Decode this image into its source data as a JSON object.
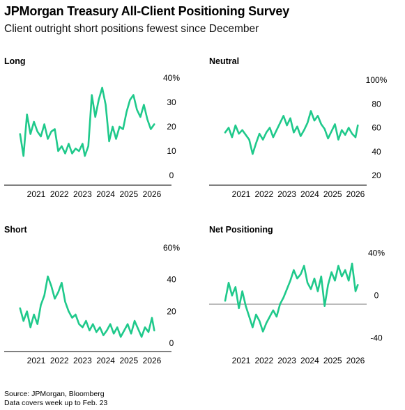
{
  "title": "JPMorgan Treasury All-Client Positioning Survey",
  "subtitle": "Client outright short positions fewest since December",
  "footer": {
    "source": "Source: JPMorgan, Bloomberg",
    "note": "Data covers week up to Feb. 23"
  },
  "colors": {
    "line": "#1fc98b",
    "axis": "#000000",
    "zero": "#777777"
  },
  "chart_data": [
    {
      "type": "line",
      "title": "Long",
      "x_ticks": [
        "2021",
        "2022",
        "2023",
        "2024",
        "2025",
        "2026"
      ],
      "y_ticks": [
        "40%",
        "30",
        "20",
        "10",
        "0"
      ],
      "y_tick_values": [
        40,
        30,
        20,
        10,
        0
      ],
      "ylim": [
        0,
        40
      ],
      "xlim": [
        2020.25,
        2026.15
      ],
      "x": [
        2020.3,
        2020.45,
        2020.6,
        2020.75,
        2020.9,
        2021.05,
        2021.2,
        2021.35,
        2021.5,
        2021.65,
        2021.8,
        2021.95,
        2022.1,
        2022.25,
        2022.4,
        2022.55,
        2022.7,
        2022.85,
        2023.0,
        2023.1,
        2023.25,
        2023.4,
        2023.55,
        2023.7,
        2023.85,
        2024.0,
        2024.15,
        2024.3,
        2024.45,
        2024.6,
        2024.75,
        2024.9,
        2025.05,
        2025.2,
        2025.35,
        2025.5,
        2025.65,
        2025.8,
        2025.95,
        2026.1
      ],
      "values": [
        17,
        8,
        25,
        17,
        22,
        18,
        16,
        21,
        15,
        18,
        19,
        10,
        12,
        9,
        13,
        9,
        11,
        10,
        13,
        8,
        12,
        33,
        24,
        31,
        36,
        29,
        14,
        20,
        15,
        20,
        19,
        26,
        31,
        33,
        27,
        24,
        29,
        23,
        19,
        21
      ]
    },
    {
      "type": "line",
      "title": "Neutral",
      "x_ticks": [
        "2021",
        "2022",
        "2023",
        "2024",
        "2025",
        "2026"
      ],
      "y_ticks": [
        "100%",
        "80",
        "60",
        "40",
        "20"
      ],
      "y_tick_values": [
        100,
        80,
        60,
        40,
        20
      ],
      "ylim": [
        20,
        100
      ],
      "xlim": [
        2020.25,
        2026.15
      ],
      "x": [
        2020.3,
        2020.45,
        2020.6,
        2020.75,
        2020.9,
        2021.05,
        2021.2,
        2021.35,
        2021.5,
        2021.65,
        2021.8,
        2021.95,
        2022.1,
        2022.25,
        2022.4,
        2022.55,
        2022.7,
        2022.85,
        2023.0,
        2023.15,
        2023.3,
        2023.45,
        2023.6,
        2023.75,
        2023.9,
        2024.05,
        2024.2,
        2024.35,
        2024.5,
        2024.65,
        2024.8,
        2024.95,
        2025.1,
        2025.25,
        2025.4,
        2025.55,
        2025.7,
        2025.85,
        2026.0,
        2026.1
      ],
      "values": [
        56,
        60,
        52,
        62,
        55,
        58,
        54,
        50,
        38,
        47,
        55,
        50,
        56,
        60,
        52,
        58,
        64,
        70,
        62,
        68,
        56,
        61,
        53,
        58,
        64,
        74,
        66,
        70,
        63,
        59,
        51,
        57,
        63,
        50,
        58,
        54,
        60,
        55,
        52,
        62
      ]
    },
    {
      "type": "line",
      "title": "Short",
      "x_ticks": [
        "2021",
        "2022",
        "2023",
        "2024",
        "2025",
        "2026"
      ],
      "y_ticks": [
        "60%",
        "40",
        "20",
        "0"
      ],
      "y_tick_values": [
        60,
        40,
        20,
        0
      ],
      "ylim": [
        0,
        60
      ],
      "xlim": [
        2020.25,
        2026.15
      ],
      "x": [
        2020.3,
        2020.45,
        2020.6,
        2020.75,
        2020.9,
        2021.05,
        2021.2,
        2021.35,
        2021.5,
        2021.65,
        2021.8,
        2021.95,
        2022.1,
        2022.25,
        2022.4,
        2022.55,
        2022.7,
        2022.85,
        2023.0,
        2023.15,
        2023.3,
        2023.45,
        2023.6,
        2023.75,
        2023.9,
        2024.05,
        2024.2,
        2024.35,
        2024.5,
        2024.65,
        2024.8,
        2024.95,
        2025.1,
        2025.25,
        2025.4,
        2025.55,
        2025.7,
        2025.85,
        2026.0,
        2026.1
      ],
      "values": [
        22,
        14,
        20,
        10,
        18,
        12,
        24,
        30,
        42,
        36,
        28,
        32,
        38,
        26,
        20,
        16,
        18,
        12,
        10,
        14,
        8,
        12,
        7,
        10,
        5,
        8,
        12,
        6,
        10,
        4,
        8,
        12,
        6,
        14,
        9,
        4,
        10,
        7,
        16,
        8
      ]
    },
    {
      "type": "line",
      "title": "Net Positioning",
      "x_ticks": [
        "2021",
        "2022",
        "2023",
        "2024",
        "2025",
        "2026"
      ],
      "y_ticks": [
        "40%",
        "0",
        "-40"
      ],
      "y_tick_values": [
        40,
        0,
        -40
      ],
      "ylim": [
        -45,
        45
      ],
      "xlim": [
        2020.25,
        2026.15
      ],
      "x": [
        2020.3,
        2020.45,
        2020.6,
        2020.75,
        2020.9,
        2021.05,
        2021.2,
        2021.35,
        2021.5,
        2021.65,
        2021.8,
        2021.95,
        2022.1,
        2022.25,
        2022.4,
        2022.55,
        2022.7,
        2022.85,
        2023.0,
        2023.15,
        2023.3,
        2023.45,
        2023.6,
        2023.75,
        2023.9,
        2024.05,
        2024.2,
        2024.35,
        2024.5,
        2024.65,
        2024.8,
        2024.95,
        2025.1,
        2025.25,
        2025.4,
        2025.55,
        2025.7,
        2025.85,
        2026.0,
        2026.1
      ],
      "values": [
        -5,
        12,
        0,
        8,
        -12,
        4,
        -10,
        -20,
        -30,
        -18,
        -24,
        -34,
        -26,
        -20,
        -14,
        -20,
        -8,
        -2,
        6,
        14,
        24,
        16,
        20,
        28,
        12,
        6,
        16,
        4,
        18,
        -10,
        10,
        22,
        14,
        28,
        18,
        24,
        14,
        30,
        4,
        10
      ]
    }
  ]
}
